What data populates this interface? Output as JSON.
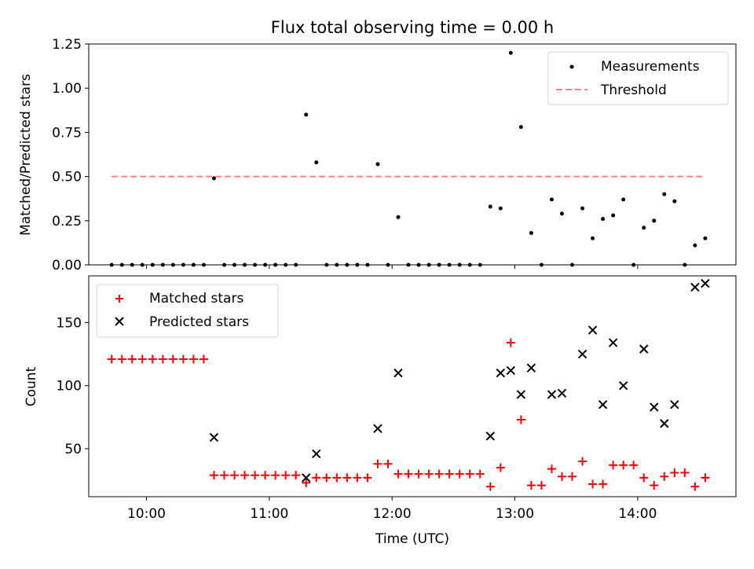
{
  "title": "Flux total observing time = 0.00 h",
  "chart_data": [
    {
      "type": "scatter",
      "ylabel": "Matched/Predicted stars",
      "ylim": [
        0,
        1.25
      ],
      "yticks": [
        "0.00",
        "0.25",
        "0.50",
        "0.75",
        "1.00",
        "1.25"
      ],
      "legend_placement": "top-right",
      "series": [
        {
          "name": "Measurements",
          "color": "#000000",
          "x": [
            9.7166,
            9.8,
            9.8833,
            9.9666,
            10.05,
            10.1333,
            10.2166,
            10.3,
            10.3833,
            10.4666,
            10.55,
            10.6333,
            10.7166,
            10.8,
            10.8833,
            10.9666,
            11.05,
            11.1333,
            11.2166,
            11.3,
            11.3833,
            11.4666,
            11.55,
            11.6333,
            11.7166,
            11.8,
            11.8833,
            11.9666,
            12.05,
            12.1333,
            12.2166,
            12.3,
            12.3833,
            12.4666,
            12.55,
            12.6333,
            12.7166,
            12.8,
            12.8833,
            12.9666,
            13.05,
            13.1333,
            13.2166,
            13.3,
            13.3833,
            13.4666,
            13.55,
            13.6333,
            13.7166,
            13.8,
            13.8833,
            13.9666,
            14.05,
            14.1333,
            14.2166,
            14.3,
            14.3833,
            14.4666,
            14.55
          ],
          "y": [
            0,
            0,
            0,
            0,
            0,
            0,
            0,
            0,
            0,
            0,
            0.49,
            0,
            0,
            0,
            0,
            0,
            0,
            0,
            0,
            0.85,
            0.58,
            0,
            0,
            0,
            0,
            0,
            0.57,
            0,
            0.27,
            0,
            0,
            0,
            0,
            0,
            0,
            0,
            0,
            0.33,
            0.32,
            1.2,
            0.78,
            0.18,
            0,
            0.37,
            0.29,
            0,
            0.32,
            0.15,
            0.26,
            0.28,
            0.37,
            0,
            0.21,
            0.25,
            0.4,
            0.36,
            0,
            0.11,
            0.15
          ]
        },
        {
          "name": "Threshold",
          "color": "#ff8080",
          "style": "dashed",
          "x": [
            9.7166,
            14.55
          ],
          "y": [
            0.5,
            0.5
          ]
        }
      ]
    },
    {
      "type": "scatter",
      "xlabel": "Time (UTC)",
      "ylabel": "Count",
      "ylim": [
        12,
        187
      ],
      "xlim": [
        9.53,
        14.8
      ],
      "xticks": [
        {
          "v": 10,
          "t": "10:00"
        },
        {
          "v": 11,
          "t": "11:00"
        },
        {
          "v": 12,
          "t": "12:00"
        },
        {
          "v": 13,
          "t": "13:00"
        },
        {
          "v": 14,
          "t": "14:00"
        }
      ],
      "yticks": [
        "50",
        "100",
        "150"
      ],
      "legend_placement": "top-left",
      "series": [
        {
          "name": "Matched stars",
          "color": "#ff0000",
          "marker": "plus",
          "x": [
            9.7166,
            9.8,
            9.8833,
            9.9666,
            10.05,
            10.1333,
            10.2166,
            10.3,
            10.3833,
            10.4666,
            10.55,
            10.6333,
            10.7166,
            10.8,
            10.8833,
            10.9666,
            11.05,
            11.1333,
            11.2166,
            11.3,
            11.3833,
            11.4666,
            11.55,
            11.6333,
            11.7166,
            11.8,
            11.8833,
            11.9666,
            12.05,
            12.1333,
            12.2166,
            12.3,
            12.3833,
            12.4666,
            12.55,
            12.6333,
            12.7166,
            12.8,
            12.8833,
            12.9666,
            13.05,
            13.1333,
            13.2166,
            13.3,
            13.3833,
            13.4666,
            13.55,
            13.6333,
            13.7166,
            13.8,
            13.8833,
            13.9666,
            14.05,
            14.1333,
            14.2166,
            14.3,
            14.3833,
            14.4666,
            14.55
          ],
          "y": [
            121,
            121,
            121,
            121,
            121,
            121,
            121,
            121,
            121,
            121,
            29,
            29,
            29,
            29,
            29,
            29,
            29,
            29,
            29,
            23,
            27,
            27,
            27,
            27,
            27,
            27,
            38,
            38,
            30,
            30,
            30,
            30,
            30,
            30,
            30,
            30,
            30,
            20,
            35,
            134,
            73,
            21,
            21,
            34,
            28,
            28,
            40,
            22,
            22,
            37,
            37,
            37,
            27,
            21,
            28,
            31,
            31,
            20,
            27
          ]
        },
        {
          "name": "Predicted stars",
          "color": "#000000",
          "marker": "x",
          "x": [
            10.55,
            11.3,
            11.3833,
            11.8833,
            12.05,
            12.8,
            12.8833,
            12.9666,
            13.05,
            13.1333,
            13.3,
            13.3833,
            13.55,
            13.6333,
            13.7166,
            13.8,
            13.8833,
            14.05,
            14.1333,
            14.2166,
            14.3,
            14.4666,
            14.55
          ],
          "y": [
            59,
            27,
            46,
            66,
            110,
            60,
            110,
            112,
            93,
            114,
            93,
            94,
            125,
            144,
            85,
            134,
            100,
            129,
            83,
            70,
            85,
            178,
            181
          ]
        }
      ]
    }
  ]
}
